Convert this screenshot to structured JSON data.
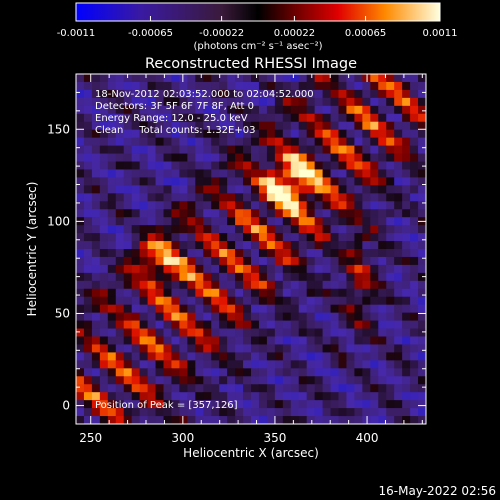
{
  "colorbar": {
    "ticks": [
      "-0.0011",
      "-0.00065",
      "-0.00022",
      "0.00022",
      "0.00065",
      "0.0011"
    ],
    "range": [
      -0.0011,
      0.0011
    ],
    "unit_label": "(photons cm⁻² s⁻¹ asec⁻²)"
  },
  "chart_data": {
    "type": "heatmap",
    "title": "Reconstructed RHESSI Image",
    "xlabel": "Heliocentric X (arcsec)",
    "ylabel": "Heliocentric Y (arcsec)",
    "xlim": [
      242,
      432
    ],
    "ylim": [
      -10,
      180
    ],
    "xticks": [
      250,
      300,
      350,
      400
    ],
    "yticks": [
      0,
      50,
      100,
      150
    ],
    "annotations": [
      "18-Nov-2012 02:03:52.000 to 02:04:52.000",
      "Detectors: 3F 5F 6F 7F 8F, Att 0",
      "Energy Range: 12.0 - 25.0 keV",
      "Clean     Total counts: 1.32E+03"
    ],
    "peak_label": "Position of Peak = [357,126]",
    "peak": [
      357,
      126
    ]
  },
  "footer": {
    "date": "16-May-2022 02:56"
  }
}
